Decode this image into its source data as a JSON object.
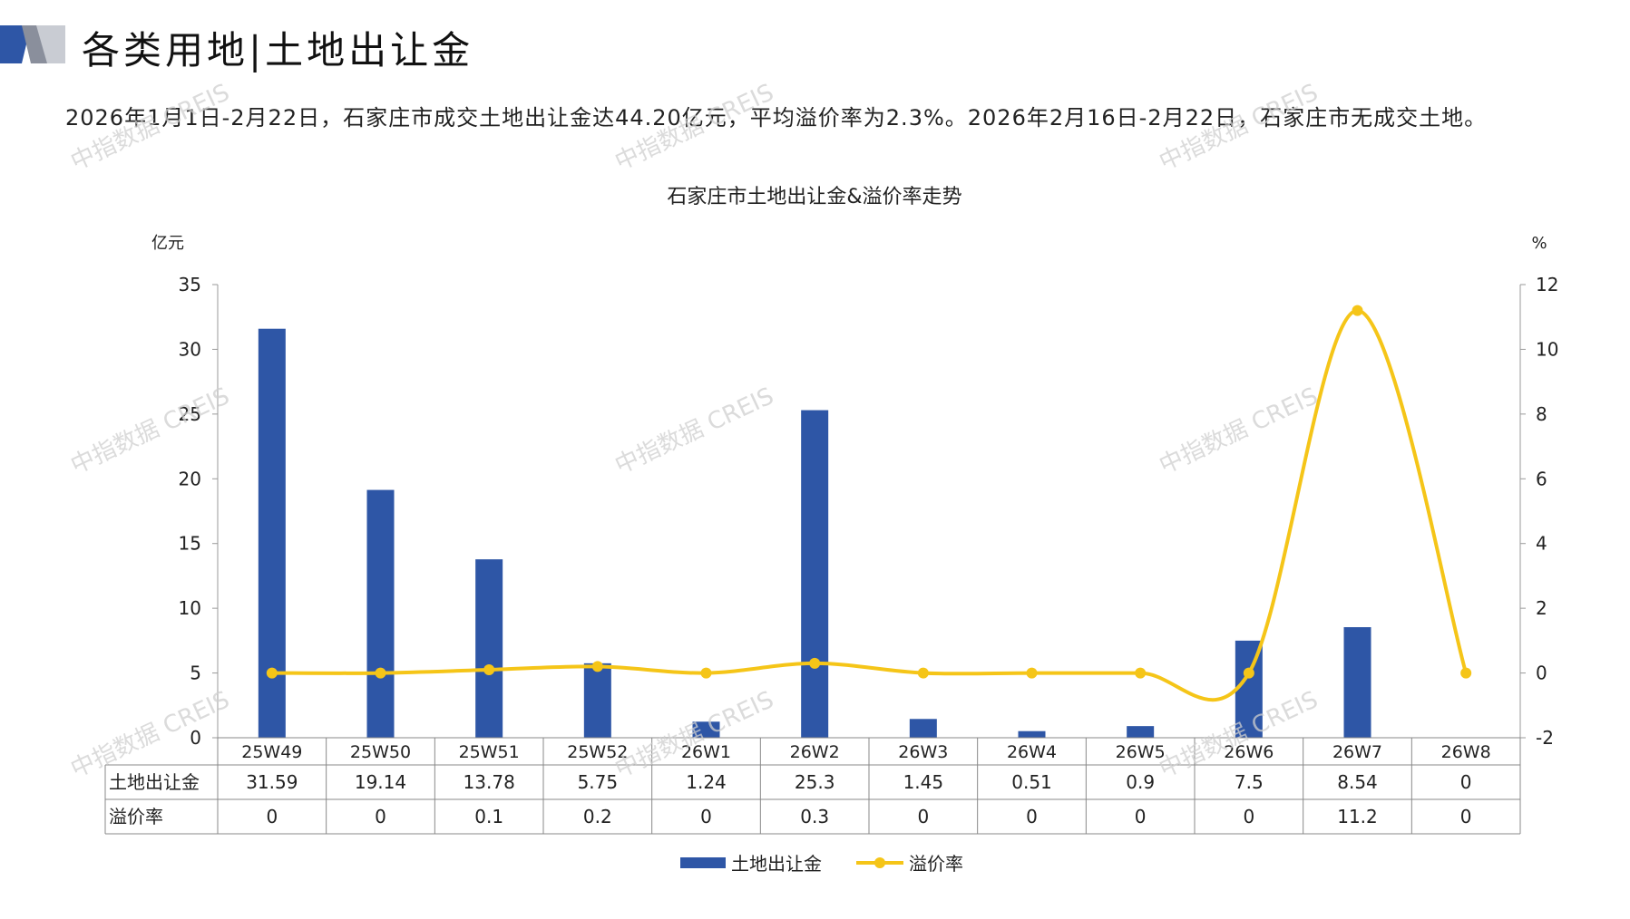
{
  "header": {
    "title": "各类用地|土地出让金"
  },
  "summary": "2026年1月1日-2月22日，石家庄市成交土地出让金达44.20亿元，平均溢价率为2.3%。2026年2月16日-2月22日，石家庄市无成交土地。",
  "watermark_text": "中指数据 CREIS",
  "chart_data": {
    "type": "bar",
    "title": "石家庄市土地出让金&溢价率走势",
    "y_left_unit": "亿元",
    "y_right_unit": "%",
    "y_left_ticks": [
      0,
      5,
      10,
      15,
      20,
      25,
      30,
      35
    ],
    "y_right_ticks": [
      -2,
      0,
      2,
      4,
      6,
      8,
      10,
      12
    ],
    "ylim_left": [
      0,
      35
    ],
    "ylim_right": [
      -2,
      12
    ],
    "categories": [
      "25W49",
      "25W50",
      "25W51",
      "25W52",
      "26W1",
      "26W2",
      "26W3",
      "26W4",
      "26W5",
      "26W6",
      "26W7",
      "26W8"
    ],
    "series": [
      {
        "name": "土地出让金",
        "type": "bar",
        "axis": "left",
        "color": "#2E56A6",
        "values": [
          31.59,
          19.14,
          13.78,
          5.75,
          1.24,
          25.3,
          1.45,
          0.51,
          0.9,
          7.5,
          8.54,
          0
        ],
        "labels": [
          "31.59",
          "19.14",
          "13.78",
          "5.75",
          "1.24",
          "25.3",
          "1.45",
          "0.51",
          "0.9",
          "7.5",
          "8.54",
          "0"
        ]
      },
      {
        "name": "溢价率",
        "type": "line",
        "axis": "right",
        "color": "#F5C518",
        "values": [
          0,
          0,
          0.1,
          0.2,
          0,
          0.3,
          0,
          0,
          0,
          0,
          11.2,
          0
        ],
        "labels": [
          "0",
          "0",
          "0.1",
          "0.2",
          "0",
          "0.3",
          "0",
          "0",
          "0",
          "0",
          "11.2",
          "0"
        ]
      }
    ],
    "legend_position": "bottom",
    "data_table": true
  }
}
